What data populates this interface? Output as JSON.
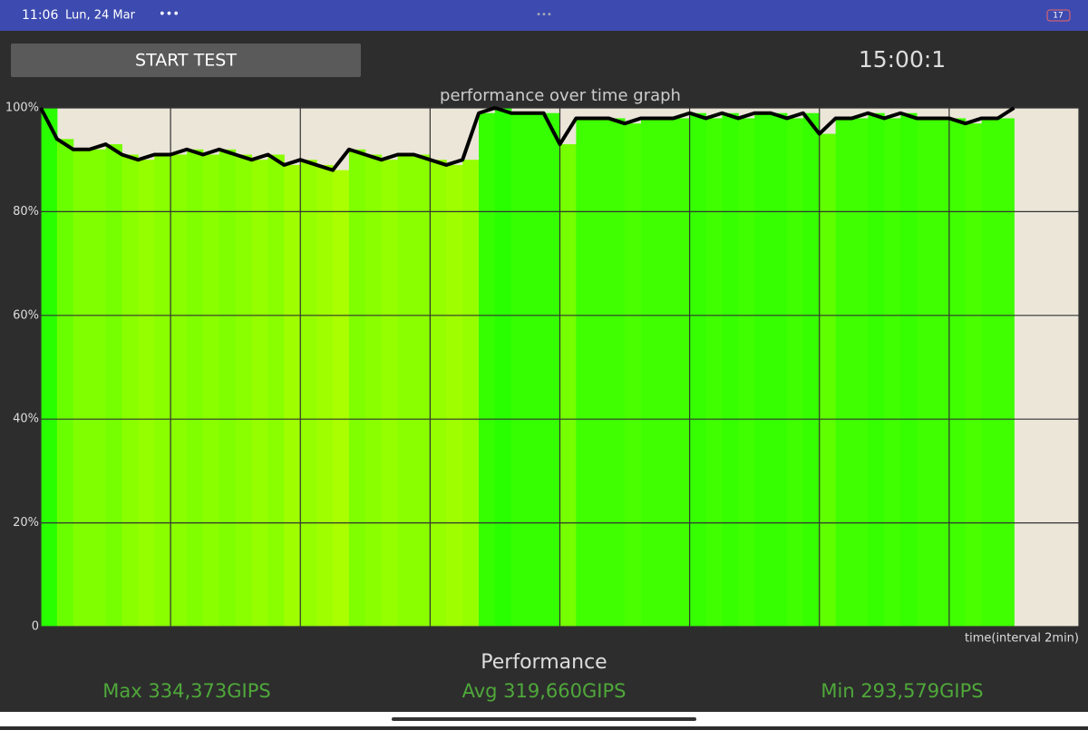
{
  "status_bar": {
    "time": "11:06",
    "date": "Lun, 24 Mar",
    "battery": "17"
  },
  "button": "START TEST",
  "timer": "15:00:1",
  "chart_data": {
    "type": "line",
    "title": "performance over time graph",
    "x_label": "time(interval 2min)",
    "x": [
      0,
      0.25,
      0.5,
      0.75,
      1,
      1.25,
      1.5,
      1.75,
      2,
      2.25,
      2.5,
      2.75,
      3,
      3.25,
      3.5,
      3.75,
      4,
      4.25,
      4.5,
      4.75,
      5,
      5.25,
      5.5,
      5.75,
      6,
      6.25,
      6.5,
      6.75,
      7,
      7.25,
      7.5,
      7.75,
      8,
      8.25,
      8.5,
      8.75,
      9,
      9.25,
      9.5,
      9.75,
      10,
      10.25,
      10.5,
      10.75,
      11,
      11.25,
      11.5,
      11.75,
      12,
      12.25,
      12.5,
      12.75,
      13,
      13.25,
      13.5,
      13.75,
      14,
      14.25,
      14.5,
      14.75,
      15
    ],
    "series": [
      {
        "color": "#000000",
        "values": [
          100,
          94,
          92,
          92,
          93,
          91,
          90,
          91,
          91,
          92,
          91,
          92,
          91,
          90,
          91,
          89,
          90,
          89,
          88,
          92,
          91,
          90,
          91,
          91,
          90,
          89,
          90,
          99,
          100,
          99,
          99,
          99,
          93,
          98,
          98,
          98,
          97,
          98,
          98,
          98,
          99,
          98,
          99,
          98,
          99,
          99,
          98,
          99,
          95,
          98,
          98,
          99,
          98,
          99,
          98,
          98,
          98,
          97,
          98,
          98,
          100
        ]
      }
    ],
    "xlim": [
      0,
      16
    ],
    "xticks": [
      0,
      2,
      4,
      6,
      8,
      10,
      12,
      14,
      16
    ],
    "ylim": [
      0,
      100
    ],
    "yticks": [
      0,
      {
        "value": 20,
        "label": "20%"
      },
      {
        "value": 40,
        "label": "40%"
      },
      {
        "value": 60,
        "label": "60%"
      },
      {
        "value": 80,
        "label": "80%"
      },
      {
        "value": 100,
        "label": "100%"
      }
    ],
    "grid": true
  },
  "summary": {
    "title": "Performance",
    "max": "Max 334,373GIPS",
    "avg": "Avg 319,660GIPS",
    "min": "Min 293,579GIPS"
  }
}
